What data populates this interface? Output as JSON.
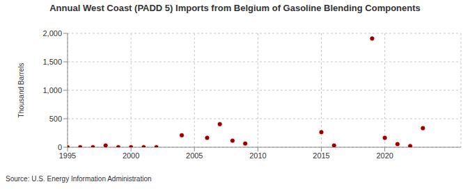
{
  "chart_data": {
    "type": "scatter",
    "title": "Annual West Coast (PADD 5) Imports from Belgium of Gasoline Blending Components",
    "source": "Source: U.S. Energy Information Administration",
    "y_label": "Thousand Barrels",
    "x": [
      1995,
      1996,
      1997,
      1998,
      1999,
      2000,
      2001,
      2002,
      2004,
      2006,
      2007,
      2008,
      2009,
      2015,
      2016,
      2019,
      2020,
      2021,
      2022,
      2023
    ],
    "values": [
      0,
      0,
      0,
      30,
      0,
      0,
      0,
      0,
      210,
      165,
      405,
      115,
      65,
      265,
      30,
      1910,
      165,
      55,
      20,
      335
    ],
    "color": "#990000",
    "marker": "circle",
    "xlim": [
      1995,
      2026
    ],
    "xticks": [
      1995,
      2000,
      2005,
      2010,
      2015,
      2020
    ],
    "ylim": [
      0,
      2000
    ],
    "yticks": [
      0,
      500,
      {
        "value": 1000,
        "label": "1,000"
      },
      {
        "value": 1500,
        "label": "1,500"
      },
      {
        "value": 2000,
        "label": "2,000"
      }
    ],
    "grid": true
  }
}
